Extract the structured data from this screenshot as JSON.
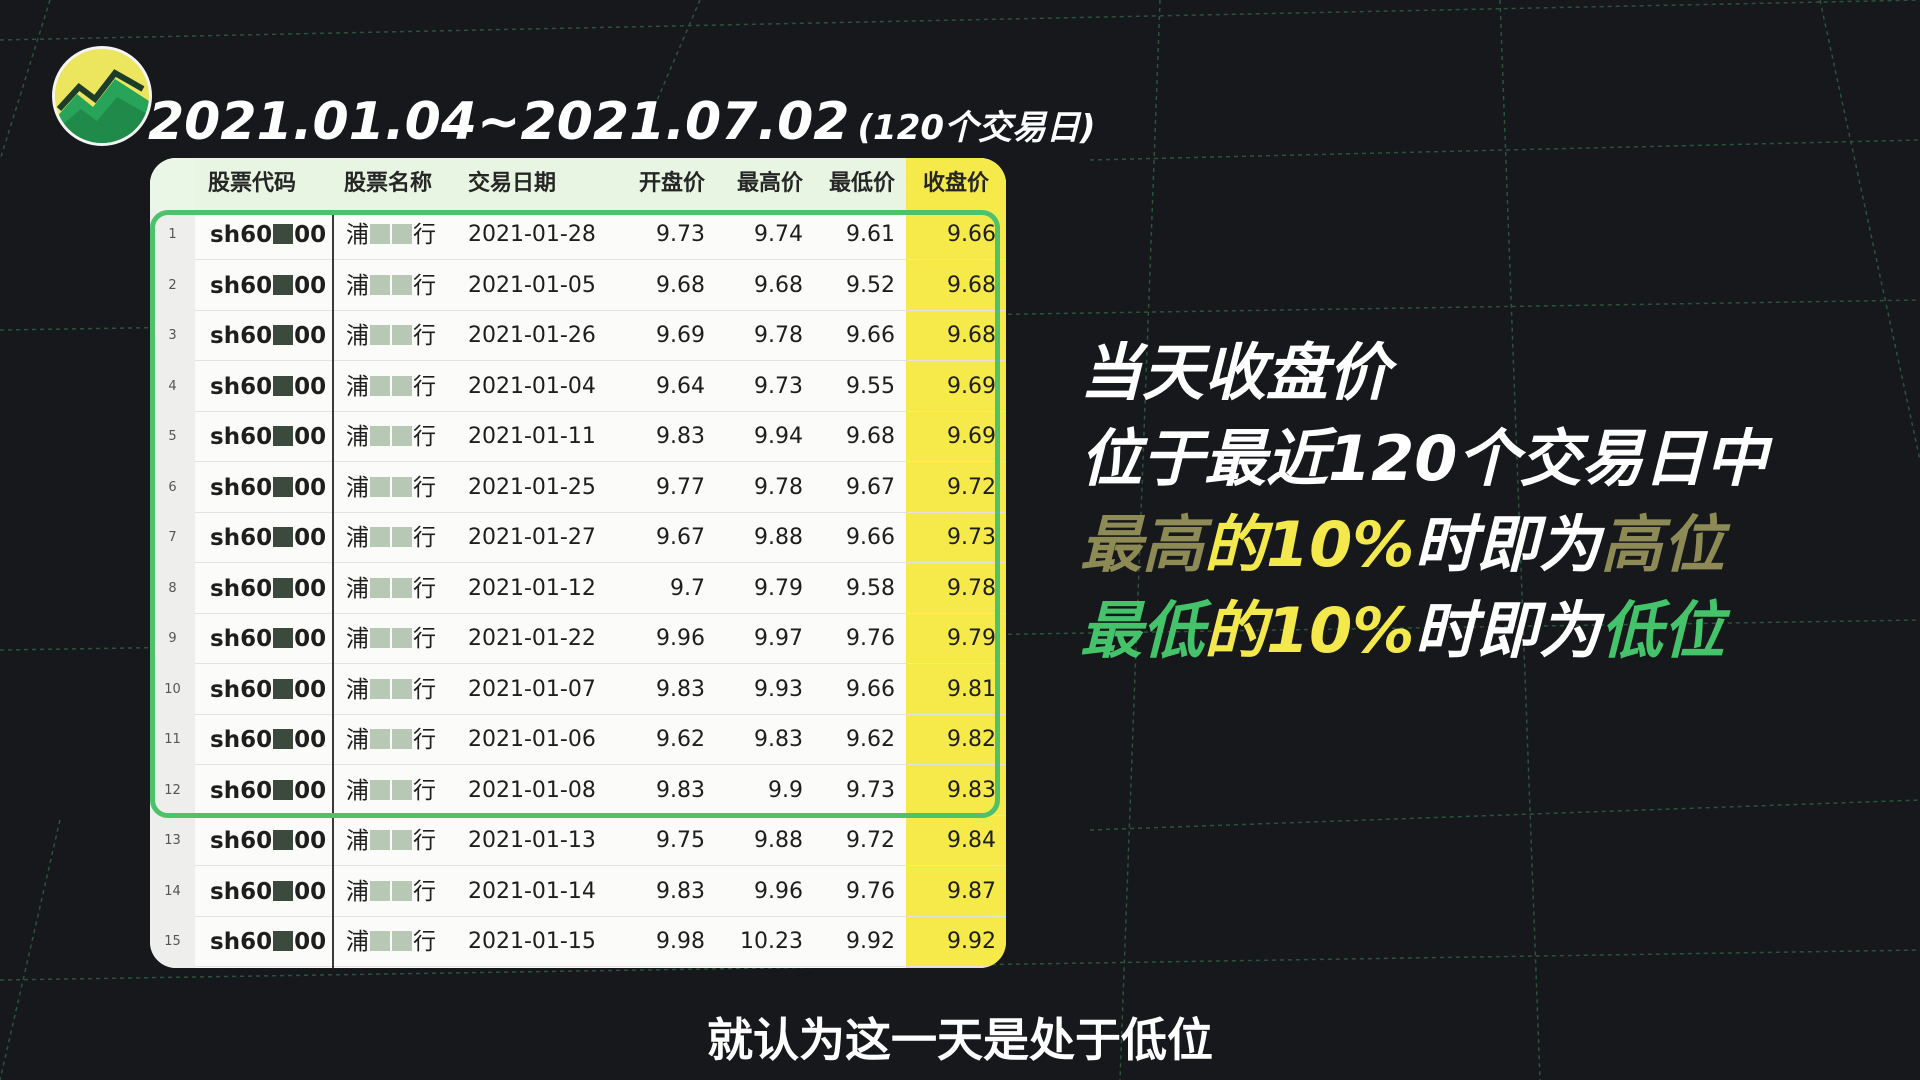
{
  "header": {
    "date_range": "2021.01.04~2021.07.02",
    "note": "(120个交易日)"
  },
  "table": {
    "columns": [
      "股票代码",
      "股票名称",
      "交易日期",
      "开盘价",
      "最高价",
      "最低价",
      "收盘价"
    ],
    "rows": [
      {
        "idx": "1",
        "code_a": "sh60",
        "code_b": "00",
        "name_a": "浦",
        "name_b": "行",
        "date": "2021-01-28",
        "open": "9.73",
        "high": "9.74",
        "low": "9.61",
        "close": "9.66"
      },
      {
        "idx": "2",
        "code_a": "sh60",
        "code_b": "00",
        "name_a": "浦",
        "name_b": "行",
        "date": "2021-01-05",
        "open": "9.68",
        "high": "9.68",
        "low": "9.52",
        "close": "9.68"
      },
      {
        "idx": "3",
        "code_a": "sh60",
        "code_b": "00",
        "name_a": "浦",
        "name_b": "行",
        "date": "2021-01-26",
        "open": "9.69",
        "high": "9.78",
        "low": "9.66",
        "close": "9.68"
      },
      {
        "idx": "4",
        "code_a": "sh60",
        "code_b": "00",
        "name_a": "浦",
        "name_b": "行",
        "date": "2021-01-04",
        "open": "9.64",
        "high": "9.73",
        "low": "9.55",
        "close": "9.69"
      },
      {
        "idx": "5",
        "code_a": "sh60",
        "code_b": "00",
        "name_a": "浦",
        "name_b": "行",
        "date": "2021-01-11",
        "open": "9.83",
        "high": "9.94",
        "low": "9.68",
        "close": "9.69"
      },
      {
        "idx": "6",
        "code_a": "sh60",
        "code_b": "00",
        "name_a": "浦",
        "name_b": "行",
        "date": "2021-01-25",
        "open": "9.77",
        "high": "9.78",
        "low": "9.67",
        "close": "9.72"
      },
      {
        "idx": "7",
        "code_a": "sh60",
        "code_b": "00",
        "name_a": "浦",
        "name_b": "行",
        "date": "2021-01-27",
        "open": "9.67",
        "high": "9.88",
        "low": "9.66",
        "close": "9.73"
      },
      {
        "idx": "8",
        "code_a": "sh60",
        "code_b": "00",
        "name_a": "浦",
        "name_b": "行",
        "date": "2021-01-12",
        "open": "9.7",
        "high": "9.79",
        "low": "9.58",
        "close": "9.78"
      },
      {
        "idx": "9",
        "code_a": "sh60",
        "code_b": "00",
        "name_a": "浦",
        "name_b": "行",
        "date": "2021-01-22",
        "open": "9.96",
        "high": "9.97",
        "low": "9.76",
        "close": "9.79"
      },
      {
        "idx": "10",
        "code_a": "sh60",
        "code_b": "00",
        "name_a": "浦",
        "name_b": "行",
        "date": "2021-01-07",
        "open": "9.83",
        "high": "9.93",
        "low": "9.66",
        "close": "9.81"
      },
      {
        "idx": "11",
        "code_a": "sh60",
        "code_b": "00",
        "name_a": "浦",
        "name_b": "行",
        "date": "2021-01-06",
        "open": "9.62",
        "high": "9.83",
        "low": "9.62",
        "close": "9.82"
      },
      {
        "idx": "12",
        "code_a": "sh60",
        "code_b": "00",
        "name_a": "浦",
        "name_b": "行",
        "date": "2021-01-08",
        "open": "9.83",
        "high": "9.9",
        "low": "9.73",
        "close": "9.83"
      },
      {
        "idx": "13",
        "code_a": "sh60",
        "code_b": "00",
        "name_a": "浦",
        "name_b": "行",
        "date": "2021-01-13",
        "open": "9.75",
        "high": "9.88",
        "low": "9.72",
        "close": "9.84"
      },
      {
        "idx": "14",
        "code_a": "sh60",
        "code_b": "00",
        "name_a": "浦",
        "name_b": "行",
        "date": "2021-01-14",
        "open": "9.83",
        "high": "9.96",
        "low": "9.76",
        "close": "9.87"
      },
      {
        "idx": "15",
        "code_a": "sh60",
        "code_b": "00",
        "name_a": "浦",
        "name_b": "行",
        "date": "2021-01-15",
        "open": "9.98",
        "high": "10.23",
        "low": "9.92",
        "close": "9.92"
      }
    ]
  },
  "side_text": {
    "line1": "当天收盘价",
    "line2": "位于最近120个交易日中",
    "line3_a": "最高",
    "line3_b": "的",
    "line3_c": "10%",
    "line3_d": "时即为",
    "line3_e": "高位",
    "line4_a": "最低",
    "line4_b": "的",
    "line4_c": "10%",
    "line4_d": "时即为",
    "line4_e": "低位"
  },
  "subtitle": "就认为这一天是处于低位",
  "colors": {
    "background": "#16181c",
    "grid": "#2f5a3e",
    "close_column": "#f6ea4b",
    "highlight_border": "#4cc36a",
    "tan": "#8e8a55",
    "yellow": "#f3e84c",
    "green": "#44c36a"
  },
  "icons": {
    "logo": "stock-chart-logo-icon"
  }
}
